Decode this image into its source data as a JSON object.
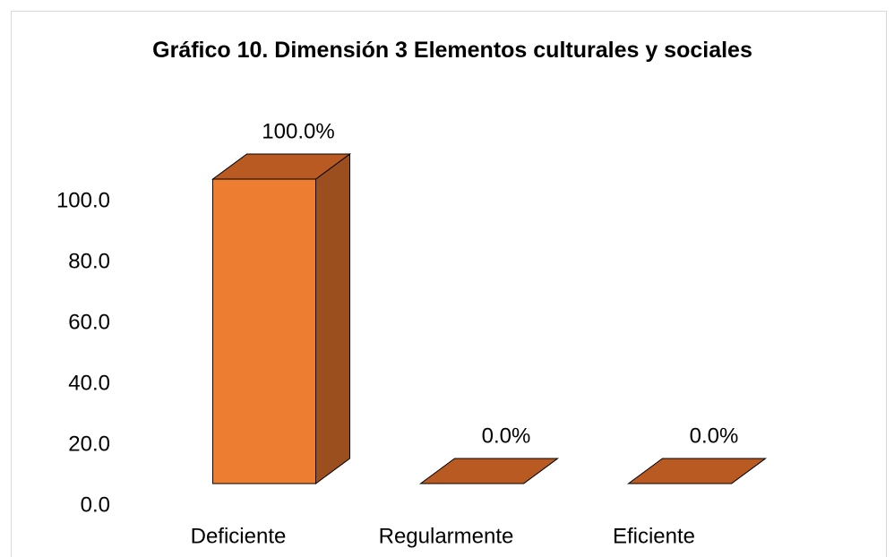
{
  "chart_data": {
    "type": "bar3d",
    "title": "Gráfico 10. Dimensión 3 Elementos culturales y sociales",
    "categories": [
      "Deficiente",
      "Regularmente",
      "Eficiente"
    ],
    "values": [
      100,
      0,
      0
    ],
    "value_labels": [
      "100.0%",
      "0.0%",
      "0.0%"
    ],
    "color": "#ED7D31",
    "ylim": [
      0,
      100
    ],
    "yticks": [
      {
        "value": 0,
        "label": "0.0"
      },
      {
        "value": 20,
        "label": "20.0"
      },
      {
        "value": 40,
        "label": "40.0"
      },
      {
        "value": 60,
        "label": "60.0"
      },
      {
        "value": 80,
        "label": "80.0"
      },
      {
        "value": 100,
        "label": "100.0"
      }
    ],
    "grid": false
  }
}
